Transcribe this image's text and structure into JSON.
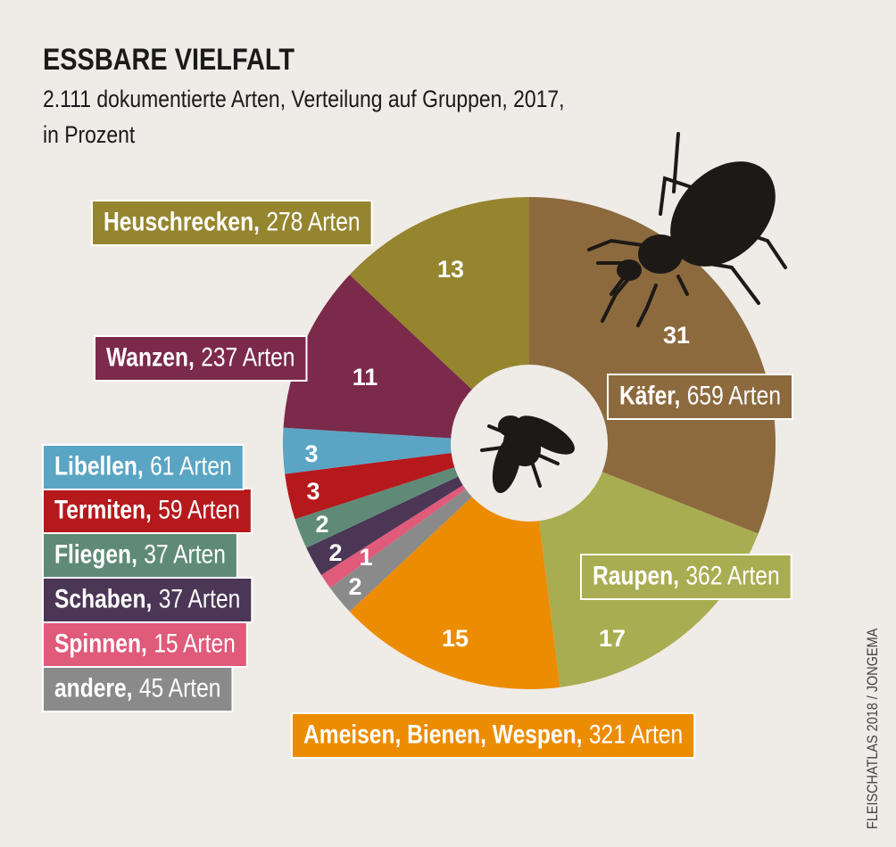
{
  "chart_data": {
    "type": "pie",
    "title": "ESSBARE VIELFALT",
    "subtitle": [
      "2.111 dokumentierte Arten, Verteilung auf Gruppen, 2017,",
      "in Prozent"
    ],
    "categories": [
      "Käfer,",
      "Raupen,",
      "Ameisen, Bienen, Wespen,",
      "andere,",
      "Spinnen,",
      "Schaben,",
      "Fliegen,",
      "Termiten,",
      "Libellen,",
      "Wanzen,",
      "Heuschrecken,"
    ],
    "counts": [
      "659 Arten",
      "362 Arten",
      "321 Arten",
      "45 Arten",
      "15 Arten",
      "37 Arten",
      "37 Arten",
      "59 Arten",
      "61 Arten",
      "237 Arten",
      "278 Arten"
    ],
    "values": [
      31,
      17,
      15,
      2,
      1,
      2,
      2,
      3,
      3,
      11,
      13
    ],
    "colors": [
      "#8c6a3e",
      "#a9ad52",
      "#ec8c00",
      "#8a8a8a",
      "#e05a7a",
      "#4b3656",
      "#5f8a78",
      "#b5191c",
      "#5aa5c4",
      "#7b2a4b",
      "#95852f"
    ]
  },
  "credit": "FLEISCHATLAS 2018 / JONGEMA"
}
